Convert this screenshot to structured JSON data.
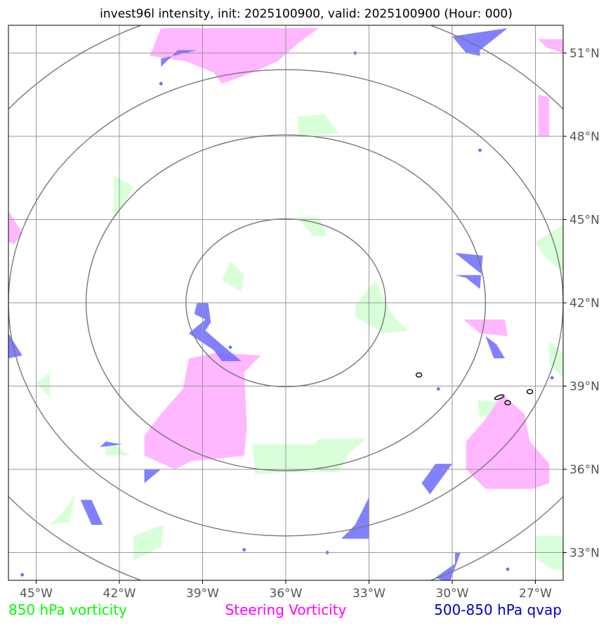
{
  "chart_data": {
    "type": "map",
    "title": "invest96l intensity, init: 2025100900, valid: 2025100900 (Hour: 000)",
    "projection": "lon-lat",
    "lon_range": [
      -46.0,
      -26.0
    ],
    "lat_range": [
      32.0,
      52.0
    ],
    "center": {
      "lon": -36.0,
      "lat": 42.0
    },
    "x_ticks": [
      {
        "lon": -45,
        "label": "45°W"
      },
      {
        "lon": -42,
        "label": "42°W"
      },
      {
        "lon": -39,
        "label": "39°W"
      },
      {
        "lon": -36,
        "label": "36°W"
      },
      {
        "lon": -33,
        "label": "33°W"
      },
      {
        "lon": -30,
        "label": "30°W"
      },
      {
        "lon": -27,
        "label": "27°W"
      }
    ],
    "y_ticks": [
      {
        "lat": 51,
        "label": "51°N"
      },
      {
        "lat": 48,
        "label": "48°N"
      },
      {
        "lat": 45,
        "label": "45°N"
      },
      {
        "lat": 42,
        "label": "42°N"
      },
      {
        "lat": 39,
        "label": "39°N"
      },
      {
        "lat": 36,
        "label": "36°N"
      },
      {
        "lat": 33,
        "label": "33°N"
      }
    ],
    "range_rings_deg": [
      3.6,
      7.2,
      10.0,
      13.0
    ],
    "legend": [
      {
        "label": "850 hPa vorticity",
        "color": "#00ff00",
        "fill": "#ccffcc"
      },
      {
        "label": "Steering Vorticity",
        "color": "#ff00ff",
        "fill": "#ffb3ff"
      },
      {
        "label": "500-850 hPa qvap",
        "color": "#0000cc",
        "fill": "#6b6bff"
      }
    ],
    "steering_vorticity_polygons": [
      [
        [
          -40.5,
          51.9
        ],
        [
          -34.8,
          51.9
        ],
        [
          -35.5,
          51.4
        ],
        [
          -36.3,
          50.7
        ],
        [
          -37.2,
          50.3
        ],
        [
          -38.3,
          49.9
        ],
        [
          -38.6,
          50.3
        ],
        [
          -39.6,
          50.7
        ],
        [
          -40.9,
          50.9
        ]
      ],
      [
        [
          -39.5,
          40.0
        ],
        [
          -38.5,
          40.2
        ],
        [
          -36.9,
          40.1
        ],
        [
          -37.5,
          39.5
        ],
        [
          -37.4,
          37.5
        ],
        [
          -37.5,
          36.5
        ],
        [
          -38.3,
          36.4
        ],
        [
          -39.4,
          36.3
        ],
        [
          -40.0,
          36.0
        ],
        [
          -41.1,
          36.5
        ],
        [
          -41.1,
          37.2
        ],
        [
          -40.5,
          38.0
        ],
        [
          -39.7,
          38.9
        ]
      ],
      [
        [
          -28.2,
          38.7
        ],
        [
          -27.4,
          38.0
        ],
        [
          -27.2,
          37.0
        ],
        [
          -26.5,
          36.2
        ],
        [
          -26.5,
          35.5
        ],
        [
          -27.1,
          35.3
        ],
        [
          -28.8,
          35.3
        ],
        [
          -29.5,
          36.0
        ],
        [
          -29.5,
          37.0
        ],
        [
          -28.8,
          37.8
        ]
      ],
      [
        [
          -26.9,
          51.5
        ],
        [
          -26.0,
          51.5
        ],
        [
          -26.0,
          51.0
        ],
        [
          -26.6,
          51.2
        ]
      ],
      [
        [
          -26.9,
          49.5
        ],
        [
          -26.5,
          49.4
        ],
        [
          -26.5,
          48.0
        ],
        [
          -26.9,
          48.0
        ]
      ],
      [
        [
          -45.8,
          45.0
        ],
        [
          -45.5,
          44.5
        ],
        [
          -45.8,
          44.1
        ],
        [
          -46.0,
          44.2
        ],
        [
          -46.0,
          45.3
        ]
      ],
      [
        [
          -29.6,
          41.4
        ],
        [
          -28.1,
          41.4
        ],
        [
          -28.0,
          40.8
        ],
        [
          -29.0,
          40.9
        ]
      ]
    ],
    "vorticity_850_polygons": [
      [
        [
          -35.6,
          48.7
        ],
        [
          -34.6,
          48.8
        ],
        [
          -34.1,
          48.1
        ],
        [
          -35.5,
          48.0
        ]
      ],
      [
        [
          -35.6,
          45.1
        ],
        [
          -34.8,
          45.1
        ],
        [
          -34.5,
          44.4
        ],
        [
          -35.0,
          44.4
        ]
      ],
      [
        [
          -33.5,
          41.9
        ],
        [
          -32.8,
          42.8
        ],
        [
          -32.1,
          41.5
        ],
        [
          -31.6,
          41.0
        ],
        [
          -32.5,
          40.9
        ],
        [
          -33.5,
          41.5
        ]
      ],
      [
        [
          -26.0,
          44.8
        ],
        [
          -27.0,
          44.2
        ],
        [
          -26.7,
          43.7
        ],
        [
          -26.0,
          43.1
        ]
      ],
      [
        [
          -26.0,
          39.3
        ],
        [
          -26.5,
          39.8
        ],
        [
          -26.5,
          40.6
        ],
        [
          -26.0,
          40.2
        ]
      ],
      [
        [
          -37.2,
          36.9
        ],
        [
          -35.0,
          36.9
        ],
        [
          -34.8,
          37.1
        ],
        [
          -33.1,
          37.1
        ],
        [
          -33.7,
          36.6
        ],
        [
          -34.1,
          35.9
        ],
        [
          -36.2,
          35.9
        ],
        [
          -37.1,
          35.8
        ]
      ],
      [
        [
          -42.2,
          46.6
        ],
        [
          -41.5,
          46.2
        ],
        [
          -41.8,
          45.6
        ],
        [
          -42.2,
          45.0
        ]
      ],
      [
        [
          -38.0,
          43.5
        ],
        [
          -37.5,
          43.0
        ],
        [
          -37.6,
          42.4
        ],
        [
          -38.3,
          42.8
        ]
      ],
      [
        [
          -45.0,
          39.1
        ],
        [
          -44.5,
          39.5
        ],
        [
          -44.5,
          38.6
        ]
      ],
      [
        [
          -42.5,
          37.1
        ],
        [
          -41.6,
          36.5
        ],
        [
          -42.5,
          36.5
        ]
      ],
      [
        [
          -28.0,
          38.4
        ],
        [
          -29.1,
          38.5
        ],
        [
          -29.0,
          37.9
        ],
        [
          -28.0,
          37.9
        ]
      ],
      [
        [
          -41.5,
          33.6
        ],
        [
          -40.4,
          34.0
        ],
        [
          -40.5,
          33.2
        ],
        [
          -41.5,
          32.7
        ]
      ],
      [
        [
          -43.6,
          35.1
        ],
        [
          -44.0,
          34.5
        ],
        [
          -44.5,
          34.0
        ],
        [
          -43.8,
          34.1
        ]
      ],
      [
        [
          -27.0,
          33.6
        ],
        [
          -26.0,
          33.6
        ],
        [
          -26.0,
          32.4
        ],
        [
          -26.4,
          32.4
        ],
        [
          -27.0,
          32.8
        ]
      ]
    ],
    "qvap_polygons": [
      [
        [
          -30.0,
          51.6
        ],
        [
          -28.0,
          51.9
        ],
        [
          -29.0,
          51.1
        ],
        [
          -29.0,
          50.9
        ],
        [
          -29.5,
          51.0
        ]
      ],
      [
        [
          -39.2,
          42.0
        ],
        [
          -38.8,
          42.0
        ],
        [
          -38.7,
          41.3
        ],
        [
          -38.9,
          41.0
        ],
        [
          -38.2,
          40.4
        ],
        [
          -37.6,
          39.9
        ],
        [
          -38.3,
          39.9
        ],
        [
          -38.6,
          40.3
        ],
        [
          -39.5,
          40.9
        ],
        [
          -38.9,
          41.4
        ],
        [
          -39.3,
          41.6
        ]
      ],
      [
        [
          -29.9,
          43.8
        ],
        [
          -28.9,
          43.7
        ],
        [
          -29.0,
          42.5
        ],
        [
          -29.5,
          42.9
        ],
        [
          -29.9,
          43.0
        ],
        [
          -28.9,
          43.0
        ]
      ],
      [
        [
          -28.8,
          40.8
        ],
        [
          -28.5,
          40.0
        ],
        [
          -28.1,
          40.0
        ],
        [
          -28.4,
          40.5
        ]
      ],
      [
        [
          -30.6,
          36.2
        ],
        [
          -30.0,
          36.2
        ],
        [
          -30.8,
          35.1
        ],
        [
          -31.1,
          35.5
        ]
      ],
      [
        [
          -33.0,
          35.0
        ],
        [
          -33.0,
          33.5
        ],
        [
          -34.0,
          33.5
        ],
        [
          -33.5,
          34.0
        ]
      ],
      [
        [
          -29.9,
          33.0
        ],
        [
          -29.7,
          33.0
        ],
        [
          -30.1,
          31.9
        ],
        [
          -30.6,
          32.1
        ],
        [
          -29.9,
          32.6
        ]
      ],
      [
        [
          -39.9,
          51.1
        ],
        [
          -39.2,
          51.1
        ],
        [
          -40.5,
          50.8
        ],
        [
          -40.5,
          50.5
        ]
      ],
      [
        [
          -41.1,
          36.0
        ],
        [
          -40.5,
          36.0
        ],
        [
          -41.1,
          35.5
        ]
      ],
      [
        [
          -42.5,
          37.0
        ],
        [
          -41.9,
          36.9
        ],
        [
          -42.7,
          36.8
        ]
      ],
      [
        [
          -43.4,
          34.9
        ],
        [
          -43.0,
          34.9
        ],
        [
          -42.6,
          34.0
        ],
        [
          -43.0,
          34.0
        ]
      ],
      [
        [
          -46.0,
          40.9
        ],
        [
          -45.5,
          40.1
        ],
        [
          -46.0,
          40.0
        ]
      ]
    ],
    "qvap_dots": [
      [
        -33.5,
        51.0
      ],
      [
        -40.5,
        49.9
      ],
      [
        -29.0,
        47.5
      ],
      [
        -38.0,
        40.4
      ],
      [
        -30.5,
        38.9
      ],
      [
        -26.4,
        39.3
      ],
      [
        -37.5,
        33.1
      ],
      [
        -34.5,
        33.0
      ],
      [
        -45.5,
        32.2
      ],
      [
        -28.0,
        32.4
      ]
    ],
    "contour_rings": [
      [
        -31.2,
        39.4
      ],
      [
        -28.3,
        38.6
      ],
      [
        -27.2,
        38.8
      ],
      [
        -28.0,
        38.4
      ]
    ]
  }
}
